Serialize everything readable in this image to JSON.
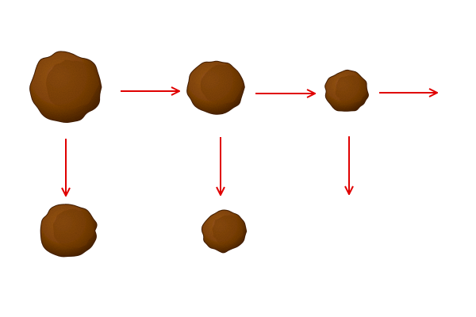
{
  "diagram": {
    "blob_colors": {
      "base": "#8a4a12",
      "mid": "#7a3e0c",
      "dark": "#4a2406",
      "highlight": "#a45d1f"
    },
    "arrow_color": "#e00000",
    "particles": [
      {
        "id": "top-large",
        "row": "top"
      },
      {
        "id": "top-medium",
        "row": "top"
      },
      {
        "id": "top-small",
        "row": "top"
      },
      {
        "id": "bottom-left",
        "row": "bottom"
      },
      {
        "id": "bottom-middle",
        "row": "bottom"
      }
    ],
    "arrows": [
      {
        "id": "h1",
        "direction": "right"
      },
      {
        "id": "h2",
        "direction": "right"
      },
      {
        "id": "h3",
        "direction": "right"
      },
      {
        "id": "v1",
        "direction": "down"
      },
      {
        "id": "v2",
        "direction": "down"
      },
      {
        "id": "v3",
        "direction": "down"
      }
    ]
  }
}
